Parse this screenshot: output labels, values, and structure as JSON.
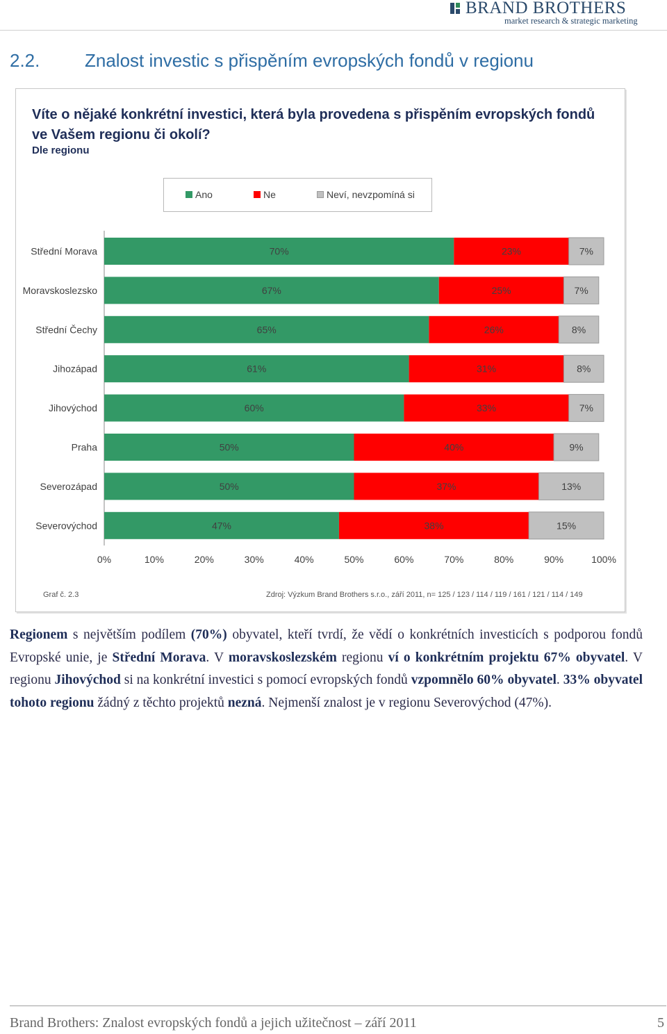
{
  "header": {
    "brand_name": "BRAND BROTHERS",
    "brand_tagline": "market research & strategic marketing",
    "brand_color": "#2b4a6b"
  },
  "section": {
    "number": "2.2.",
    "title": "Znalost investic s přispěním evropských fondů v regionu"
  },
  "figure": {
    "question": "Víte o nějaké konkrétní investici, která byla provedena s přispěním evropských fondů ve Vašem regionu či okolí?",
    "subtitle": "Dle regionu",
    "graph_label": "Graf č. 2.3",
    "source": "Zdroj: Výzkum Brand Brothers s.r.o., září 2011, n= 125 / 123 / 114 / 119 / 161 / 121 / 114 / 149"
  },
  "chart_data": {
    "type": "bar",
    "orientation": "horizontal",
    "stacked": true,
    "categories": [
      "Střední Morava",
      "Moravskoslezsko",
      "Střední Čechy",
      "Jihozápad",
      "Jihovýchod",
      "Praha",
      "Severozápad",
      "Severovýchod"
    ],
    "series": [
      {
        "name": "Ano",
        "color": "#339966",
        "values": [
          70,
          67,
          65,
          61,
          60,
          50,
          50,
          47
        ]
      },
      {
        "name": "Ne",
        "color": "#ff0000",
        "values": [
          23,
          25,
          26,
          31,
          33,
          40,
          37,
          38
        ]
      },
      {
        "name": "Neví, nevzpomíná si",
        "color": "#c0c0c0",
        "values": [
          7,
          7,
          8,
          8,
          7,
          9,
          13,
          15
        ]
      }
    ],
    "xlim": [
      0,
      100
    ],
    "x_ticks": [
      "0%",
      "10%",
      "20%",
      "30%",
      "40%",
      "50%",
      "60%",
      "70%",
      "80%",
      "90%",
      "100%"
    ],
    "value_format": "percent",
    "legend_position": "top",
    "grid": false
  },
  "paragraph": [
    {
      "t": "Regionem",
      "b": true
    },
    {
      "t": " s největším podílem ",
      "b": false
    },
    {
      "t": "(70%)",
      "b": true
    },
    {
      "t": " obyvatel, kteří tvrdí, že vědí o konkrétních investicích s podporou fondů Evropské unie, je ",
      "b": false
    },
    {
      "t": "Střední Morava",
      "b": true
    },
    {
      "t": ". V ",
      "b": false
    },
    {
      "t": "moravskoslezském",
      "b": true
    },
    {
      "t": " regionu ",
      "b": false
    },
    {
      "t": "ví o konkrétním projektu 67% obyvatel",
      "b": true
    },
    {
      "t": ". V regionu ",
      "b": false
    },
    {
      "t": "Jihovýchod",
      "b": true
    },
    {
      "t": " si na konkrétní investici s pomocí evropských fondů ",
      "b": false
    },
    {
      "t": "vzpomnělo 60% obyvatel",
      "b": true
    },
    {
      "t": ". ",
      "b": false
    },
    {
      "t": "33% obyvatel tohoto regionu",
      "b": true
    },
    {
      "t": " žádný z těchto projektů ",
      "b": false
    },
    {
      "t": "nezná",
      "b": true
    },
    {
      "t": ". Nejmenší znalost je v regionu Severovýchod (47%).",
      "b": false
    }
  ],
  "footer": {
    "text": "Brand Brothers: Znalost evropských fondů a jejich užitečnost – září 2011",
    "page": "5"
  }
}
